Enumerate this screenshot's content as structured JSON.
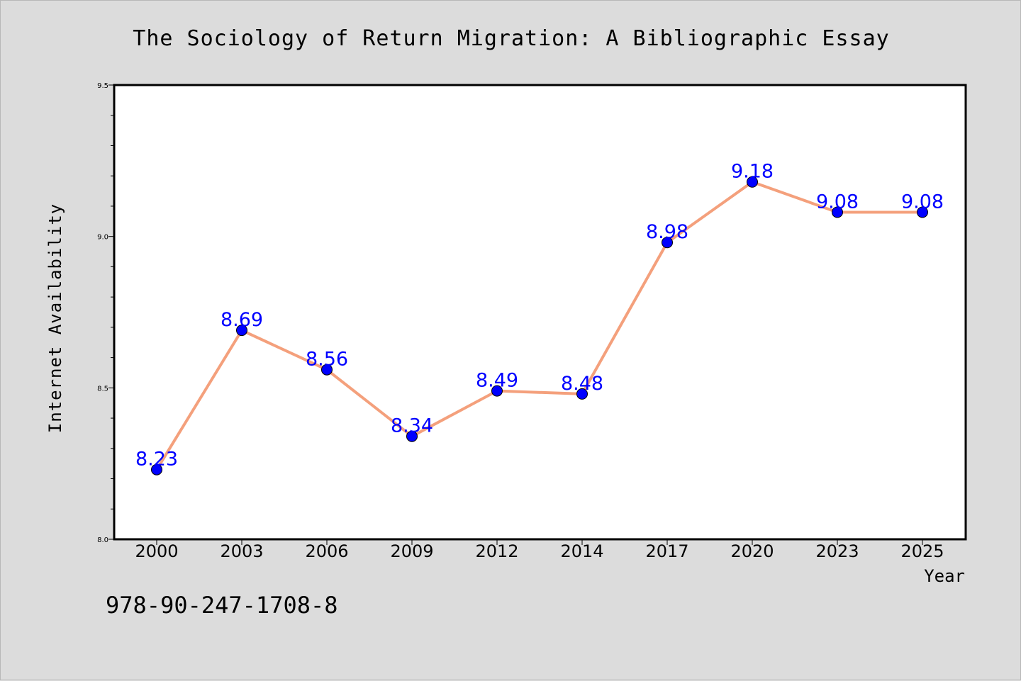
{
  "chart_data": {
    "type": "line",
    "title": "The Sociology of Return Migration: A Bibliographic Essay",
    "xlabel": "Year",
    "ylabel": "Internet Availability",
    "categories": [
      "2000",
      "2003",
      "2006",
      "2009",
      "2012",
      "2014",
      "2017",
      "2020",
      "2023",
      "2025"
    ],
    "values": [
      8.23,
      8.69,
      8.56,
      8.34,
      8.49,
      8.48,
      8.98,
      9.18,
      9.08,
      9.08
    ],
    "data_labels": [
      "8.23",
      "8.69",
      "8.56",
      "8.34",
      "8.49",
      "8.48",
      "8.98",
      "9.18",
      "9.08",
      "9.08"
    ],
    "ylim": [
      8.0,
      9.5
    ],
    "yticks": [
      "8.0",
      "8.5",
      "9.0",
      "9.5"
    ],
    "grid": false,
    "legend": "none",
    "line_color": "#f4a07c",
    "marker_color": "#0000ff",
    "label_color": "#0000ff"
  },
  "footer": {
    "isbn": "978-90-247-1708-8"
  }
}
